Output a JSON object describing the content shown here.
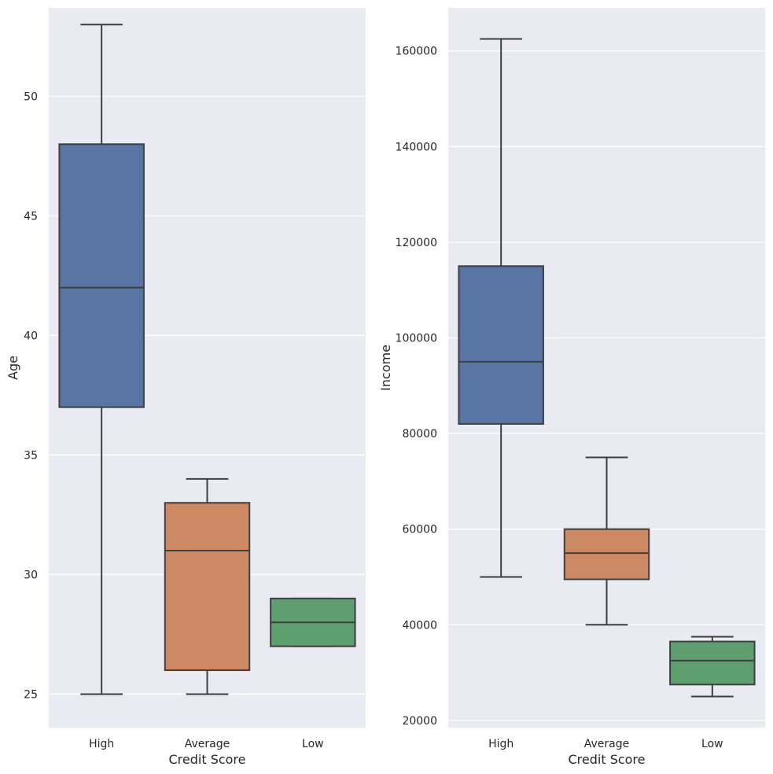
{
  "chart_data": [
    {
      "type": "box",
      "title": "",
      "xlabel": "Credit Score",
      "ylabel": "Age",
      "categories": [
        "High",
        "Average",
        "Low"
      ],
      "ylim": [
        23.6,
        53.7
      ],
      "yticks": [
        25,
        30,
        35,
        40,
        45,
        50
      ],
      "ytick_labels": [
        "25",
        "30",
        "35",
        "40",
        "45",
        "50"
      ],
      "boxes": [
        {
          "category": "High",
          "whisker_low": 25,
          "q1": 37,
          "median": 42,
          "q3": 48,
          "whisker_high": 53,
          "color": "#5875a4"
        },
        {
          "category": "Average",
          "whisker_low": 25,
          "q1": 26,
          "median": 31,
          "q3": 33,
          "whisker_high": 34,
          "color": "#cc8963"
        },
        {
          "category": "Low",
          "whisker_low": 27,
          "q1": 27,
          "median": 28,
          "q3": 29,
          "whisker_high": 29,
          "color": "#5f9e6e"
        }
      ],
      "grid": true
    },
    {
      "type": "box",
      "title": "",
      "xlabel": "Credit Score",
      "ylabel": "Income",
      "categories": [
        "High",
        "Average",
        "Low"
      ],
      "ylim": [
        18500,
        169000
      ],
      "yticks": [
        20000,
        40000,
        60000,
        80000,
        100000,
        120000,
        140000,
        160000
      ],
      "ytick_labels": [
        "20000",
        "40000",
        "60000",
        "80000",
        "100000",
        "120000",
        "140000",
        "160000"
      ],
      "boxes": [
        {
          "category": "High",
          "whisker_low": 50000,
          "q1": 82000,
          "median": 95000,
          "q3": 115000,
          "whisker_high": 162500,
          "color": "#5875a4"
        },
        {
          "category": "Average",
          "whisker_low": 40000,
          "q1": 49500,
          "median": 55000,
          "q3": 60000,
          "whisker_high": 75000,
          "color": "#cc8963"
        },
        {
          "category": "Low",
          "whisker_low": 25000,
          "q1": 27500,
          "median": 32500,
          "q3": 36500,
          "whisker_high": 37500,
          "color": "#5f9e6e"
        }
      ],
      "grid": true
    }
  ],
  "colors": {
    "background": "#eaeaf2",
    "grid": "#ffffff",
    "box_edge": "#3f3f3f",
    "text": "#262626"
  }
}
